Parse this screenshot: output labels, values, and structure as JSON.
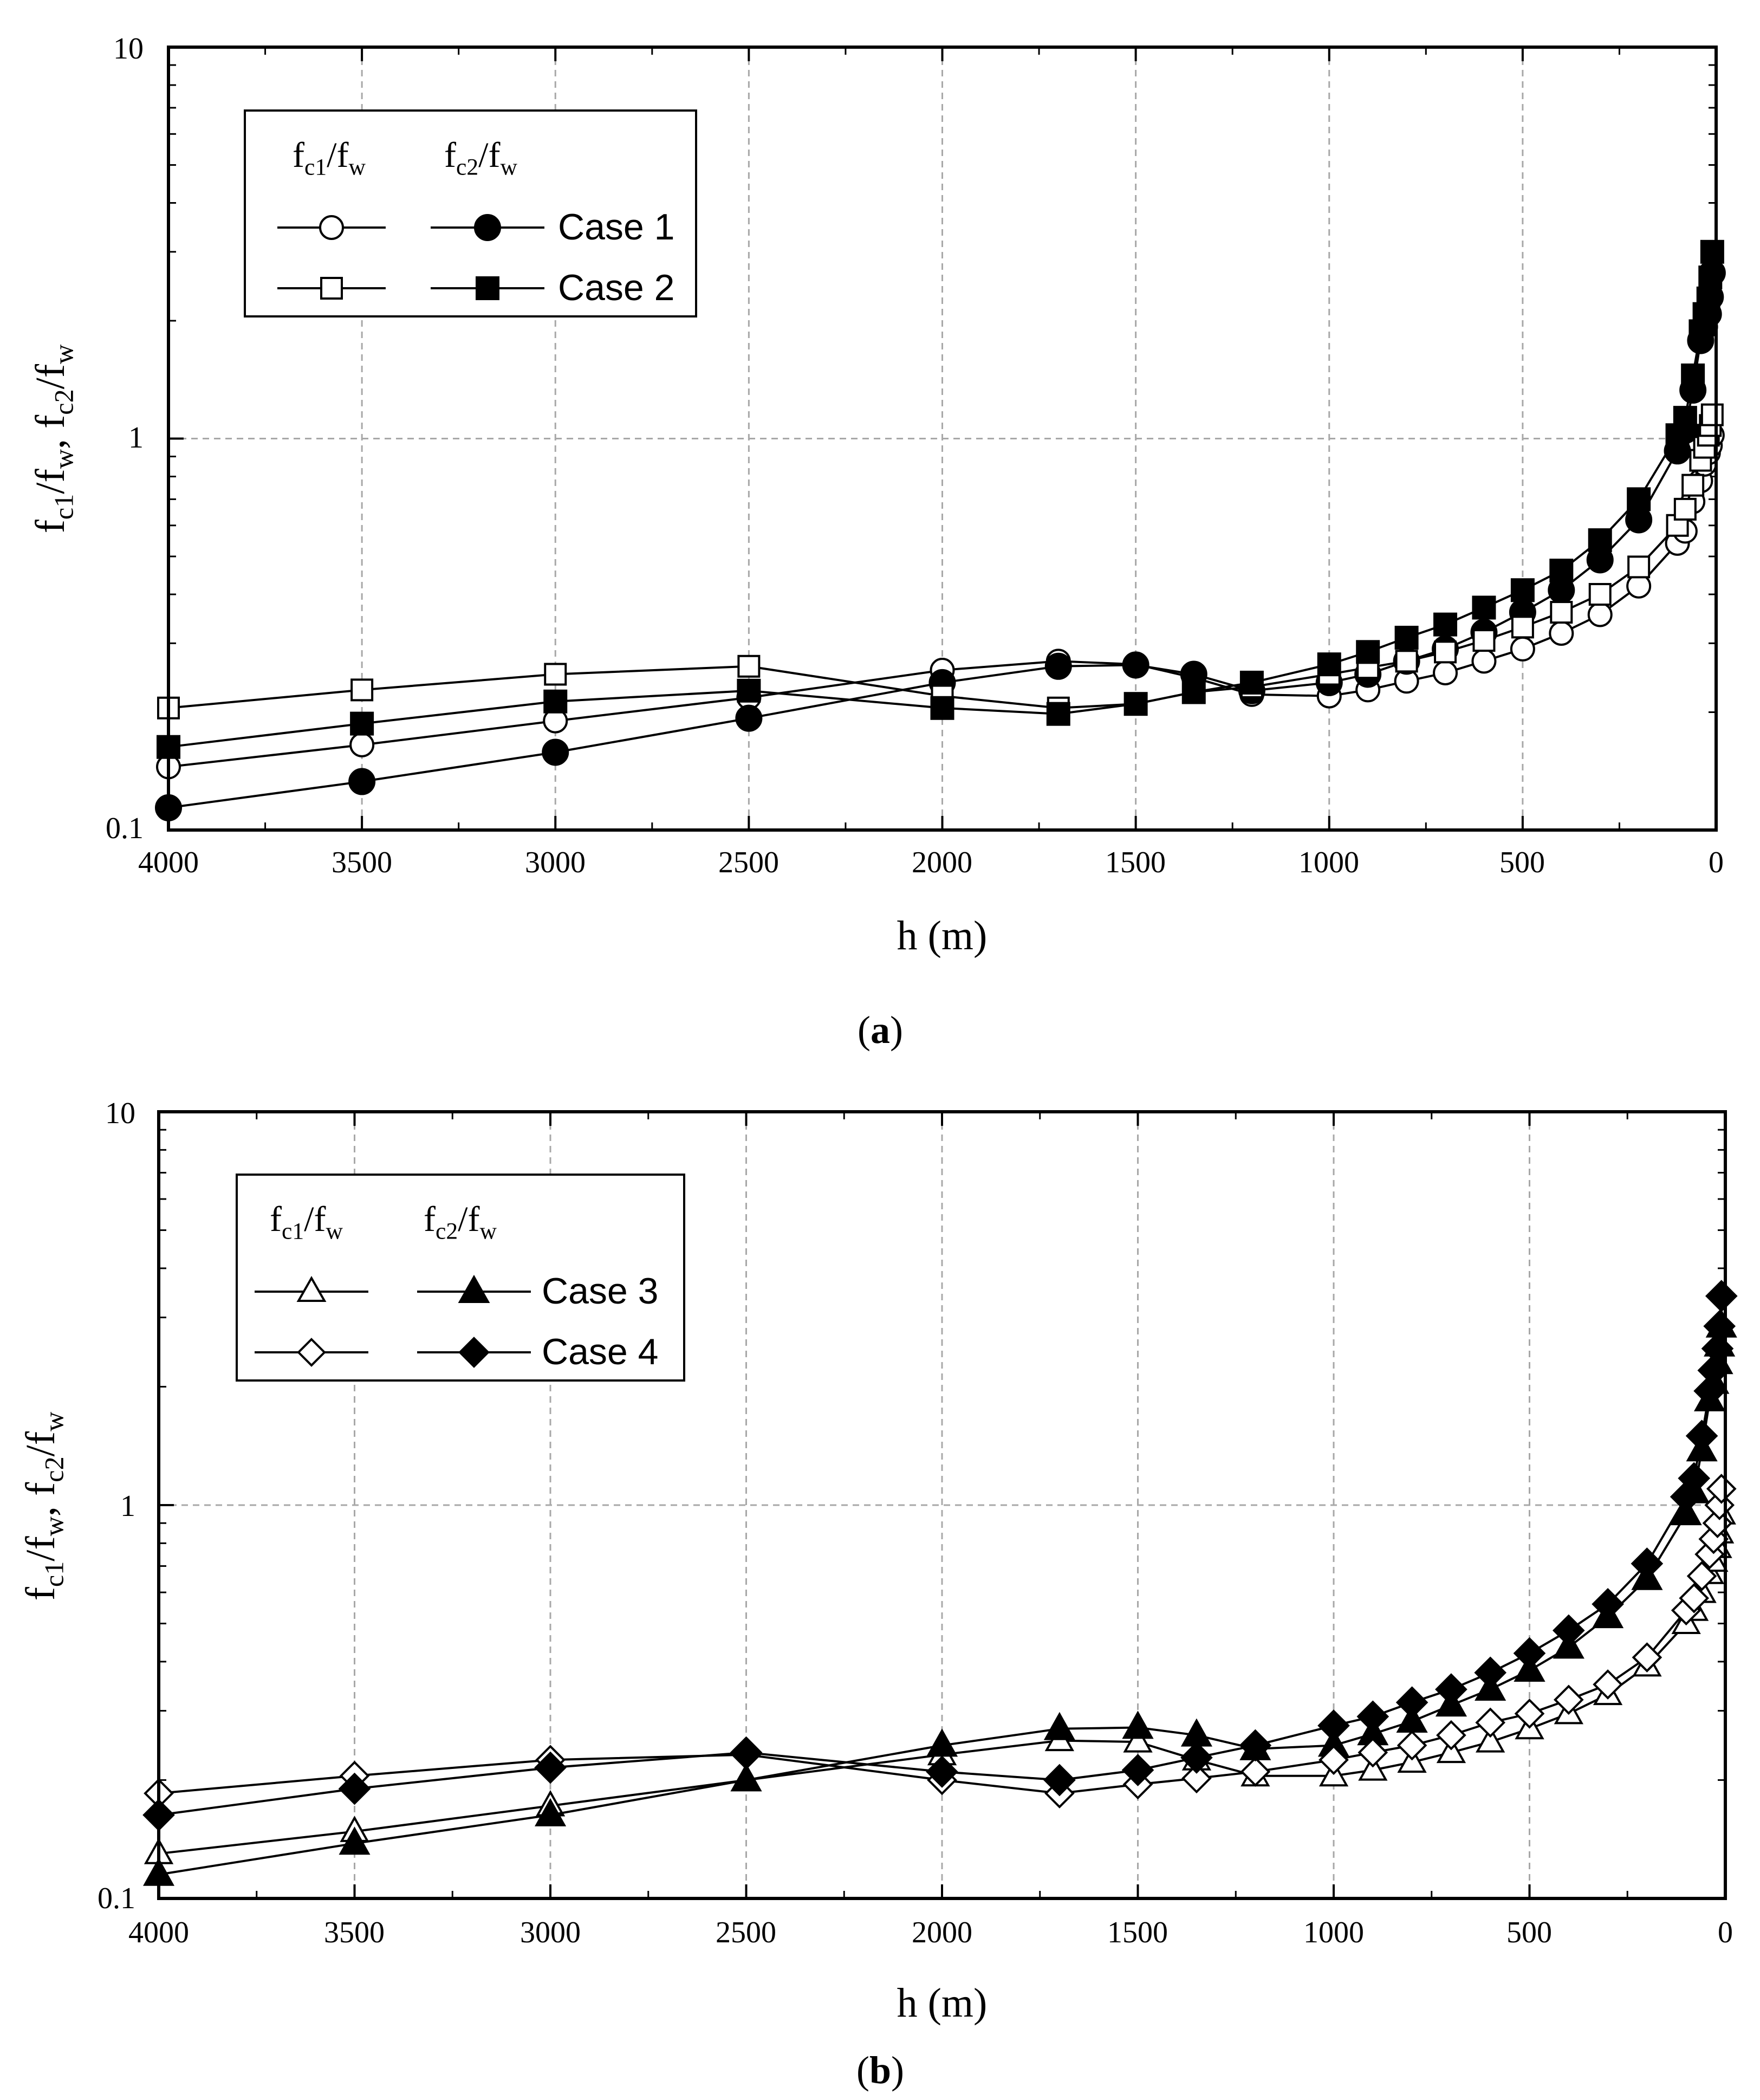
{
  "chart_data": [
    {
      "type": "line",
      "panel_label": "a",
      "xlabel": "h (m)",
      "ylabel": "f_c1/f_w, f_c2/f_w",
      "xlim": [
        4000,
        0
      ],
      "ylim": [
        0.1,
        10
      ],
      "yscale": "log",
      "x_ticks": [
        "4000",
        "3500",
        "3000",
        "2500",
        "2000",
        "1500",
        "1000",
        "500",
        "0"
      ],
      "y_ticks": [
        "0.1",
        "1",
        "10"
      ],
      "grid": true,
      "legend": {
        "placement": "top-left",
        "header_1": "f_c1/f_w",
        "header_2": "f_c2/f_w",
        "entries": [
          "Case 1",
          "Case 2"
        ]
      },
      "x": [
        4000,
        3500,
        3000,
        2500,
        2000,
        1700,
        1500,
        1350,
        1200,
        1000,
        900,
        800,
        700,
        600,
        500,
        400,
        300,
        200,
        100,
        80,
        60,
        40,
        30,
        20,
        15,
        10
      ],
      "series": [
        {
          "name": "Case 1 f_c1/f_w",
          "marker": "circle",
          "filled": false,
          "values": [
            0.145,
            0.165,
            0.19,
            0.218,
            0.256,
            0.27,
            0.265,
            0.245,
            0.222,
            0.22,
            0.228,
            0.24,
            0.252,
            0.27,
            0.29,
            0.318,
            0.355,
            0.42,
            0.54,
            0.58,
            0.69,
            0.78,
            0.86,
            0.92,
            0.96,
            1.02
          ]
        },
        {
          "name": "Case 1 f_c2/f_w",
          "marker": "circle",
          "filled": true,
          "values": [
            0.114,
            0.133,
            0.158,
            0.193,
            0.238,
            0.262,
            0.264,
            0.25,
            0.227,
            0.238,
            0.25,
            0.27,
            0.29,
            0.32,
            0.36,
            0.41,
            0.49,
            0.62,
            0.93,
            1.05,
            1.33,
            1.78,
            1.93,
            2.08,
            2.3,
            2.65
          ]
        },
        {
          "name": "Case 2 f_c1/f_w",
          "marker": "square",
          "filled": false,
          "values": [
            0.205,
            0.228,
            0.25,
            0.262,
            0.22,
            0.205,
            0.21,
            0.225,
            0.232,
            0.25,
            0.26,
            0.27,
            0.285,
            0.305,
            0.33,
            0.36,
            0.4,
            0.47,
            0.6,
            0.66,
            0.76,
            0.88,
            0.95,
            1.02,
            1.08,
            1.15
          ]
        },
        {
          "name": "Case 2 f_c2/f_w",
          "marker": "square",
          "filled": true,
          "values": [
            0.163,
            0.187,
            0.213,
            0.227,
            0.205,
            0.198,
            0.21,
            0.225,
            0.238,
            0.265,
            0.285,
            0.31,
            0.335,
            0.37,
            0.41,
            0.46,
            0.55,
            0.7,
            1.02,
            1.13,
            1.45,
            1.88,
            2.08,
            2.28,
            2.58,
            3.0
          ]
        }
      ]
    },
    {
      "type": "line",
      "panel_label": "b",
      "xlabel": "h (m)",
      "ylabel": "f_c1/f_w, f_c2/f_w",
      "xlim": [
        4000,
        0
      ],
      "ylim": [
        0.1,
        10
      ],
      "yscale": "log",
      "x_ticks": [
        "4000",
        "3500",
        "3000",
        "2500",
        "2000",
        "1500",
        "1000",
        "500",
        "0"
      ],
      "y_ticks": [
        "0.1",
        "1",
        "10"
      ],
      "grid": true,
      "legend": {
        "placement": "top-left",
        "header_1": "f_c1/f_w",
        "header_2": "f_c2/f_w",
        "entries": [
          "Case 3",
          "Case 4"
        ]
      },
      "x": [
        4000,
        3500,
        3000,
        2500,
        2000,
        1700,
        1500,
        1350,
        1200,
        1000,
        900,
        800,
        700,
        600,
        500,
        400,
        300,
        200,
        100,
        80,
        60,
        40,
        30,
        20,
        15,
        10
      ],
      "series": [
        {
          "name": "Case 3 f_c1/f_w",
          "marker": "triangle",
          "filled": false,
          "values": [
            0.13,
            0.148,
            0.172,
            0.2,
            0.232,
            0.252,
            0.25,
            0.225,
            0.205,
            0.205,
            0.212,
            0.222,
            0.235,
            0.25,
            0.27,
            0.295,
            0.33,
            0.39,
            0.5,
            0.54,
            0.6,
            0.67,
            0.72,
            0.78,
            0.85,
            0.95
          ]
        },
        {
          "name": "Case 3 f_c2/f_w",
          "marker": "triangle",
          "filled": true,
          "values": [
            0.115,
            0.138,
            0.163,
            0.2,
            0.245,
            0.27,
            0.272,
            0.26,
            0.24,
            0.245,
            0.262,
            0.282,
            0.31,
            0.34,
            0.38,
            0.435,
            0.52,
            0.65,
            0.95,
            1.08,
            1.38,
            1.85,
            2.05,
            2.3,
            2.55,
            2.85
          ]
        },
        {
          "name": "Case 4 f_c1/f_w",
          "marker": "diamond",
          "filled": false,
          "values": [
            0.185,
            0.205,
            0.225,
            0.232,
            0.2,
            0.185,
            0.195,
            0.202,
            0.21,
            0.225,
            0.235,
            0.245,
            0.26,
            0.28,
            0.295,
            0.32,
            0.35,
            0.41,
            0.54,
            0.58,
            0.66,
            0.75,
            0.82,
            0.9,
            1.0,
            1.1
          ]
        },
        {
          "name": "Case 4 f_c2/f_w",
          "marker": "diamond",
          "filled": true,
          "values": [
            0.163,
            0.19,
            0.215,
            0.235,
            0.21,
            0.2,
            0.212,
            0.228,
            0.245,
            0.275,
            0.29,
            0.315,
            0.34,
            0.375,
            0.42,
            0.48,
            0.56,
            0.71,
            1.05,
            1.17,
            1.5,
            1.95,
            2.2,
            2.5,
            2.85,
            3.4
          ]
        }
      ]
    }
  ]
}
